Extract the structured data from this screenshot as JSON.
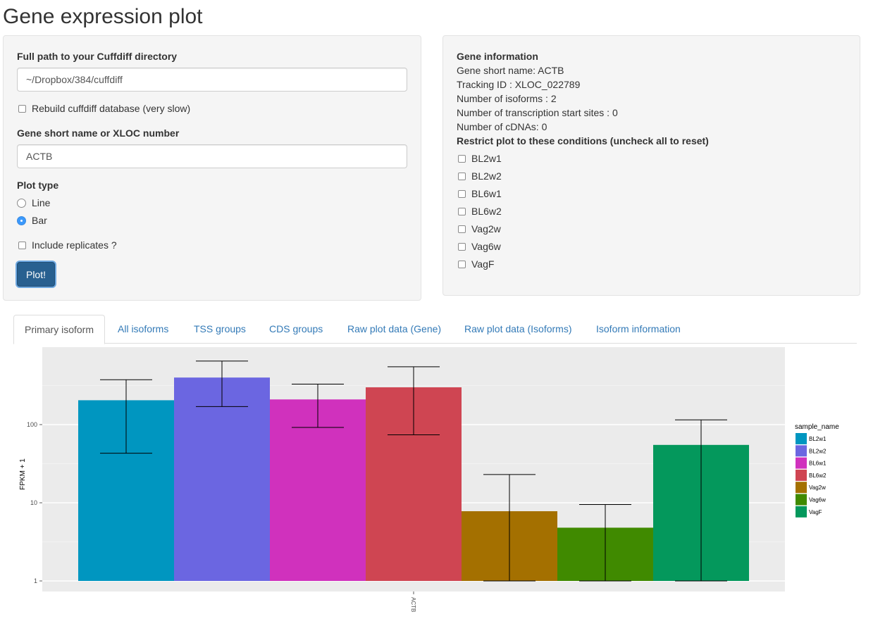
{
  "page": {
    "title": "Gene expression plot"
  },
  "form": {
    "cuffdiff_label": "Full path to your Cuffdiff directory",
    "cuffdiff_value": "~/Dropbox/384/cuffdiff",
    "rebuild_label": "Rebuild cuffdiff database (very slow)",
    "gene_label": "Gene short name or XLOC number",
    "gene_value": "ACTB",
    "plot_type_label": "Plot type",
    "plot_type_options": [
      "Line",
      "Bar"
    ],
    "plot_type_selected": "Bar",
    "replicates_label": "Include replicates ?",
    "plot_button": "Plot!"
  },
  "gene_info": {
    "heading": "Gene information",
    "lines": [
      "Gene short name: ACTB",
      "Tracking ID : XLOC_022789",
      "Number of isoforms : 2",
      "Number of transcription start sites : 0",
      "Number of cDNAs: 0"
    ],
    "restrict_label": "Restrict plot to these conditions (uncheck all to reset)",
    "conditions": [
      "BL2w1",
      "BL2w2",
      "BL6w1",
      "BL6w2",
      "Vag2w",
      "Vag6w",
      "VagF"
    ]
  },
  "tabs": [
    "Primary isoform",
    "All isoforms",
    "TSS groups",
    "CDS groups",
    "Raw plot data (Gene)",
    "Raw plot data (Isoforms)",
    "Isoform information"
  ],
  "active_tab": "Primary isoform",
  "chart_data": {
    "type": "bar",
    "y_scale": "log10",
    "ylabel": "FPKM + 1",
    "xlabel": "",
    "categories": [
      "ACTB"
    ],
    "y_ticks": [
      1,
      10,
      100
    ],
    "y_tick_labels": [
      "1",
      "10",
      "100"
    ],
    "ylim": [
      1,
      700
    ],
    "grid": true,
    "legend_title": "sample_name",
    "legend_position": "right",
    "series": [
      {
        "name": "BL2w1",
        "value": 205,
        "err_low": 43,
        "err_high": 375,
        "color": "#0096C0"
      },
      {
        "name": "BL2w2",
        "value": 400,
        "err_low": 170,
        "err_high": 650,
        "color": "#6B66E1"
      },
      {
        "name": "BL6w1",
        "value": 210,
        "err_low": 92,
        "err_high": 330,
        "color": "#D031BD"
      },
      {
        "name": "BL6w2",
        "value": 300,
        "err_low": 74,
        "err_high": 550,
        "color": "#CF4552"
      },
      {
        "name": "Vag2w",
        "value": 7.8,
        "err_low": 1,
        "err_high": 23,
        "color": "#A47000"
      },
      {
        "name": "Vag6w",
        "value": 4.8,
        "err_low": 1,
        "err_high": 9.5,
        "color": "#408A00"
      },
      {
        "name": "VagF",
        "value": 55,
        "err_low": 1,
        "err_high": 115,
        "color": "#04985C"
      }
    ]
  }
}
